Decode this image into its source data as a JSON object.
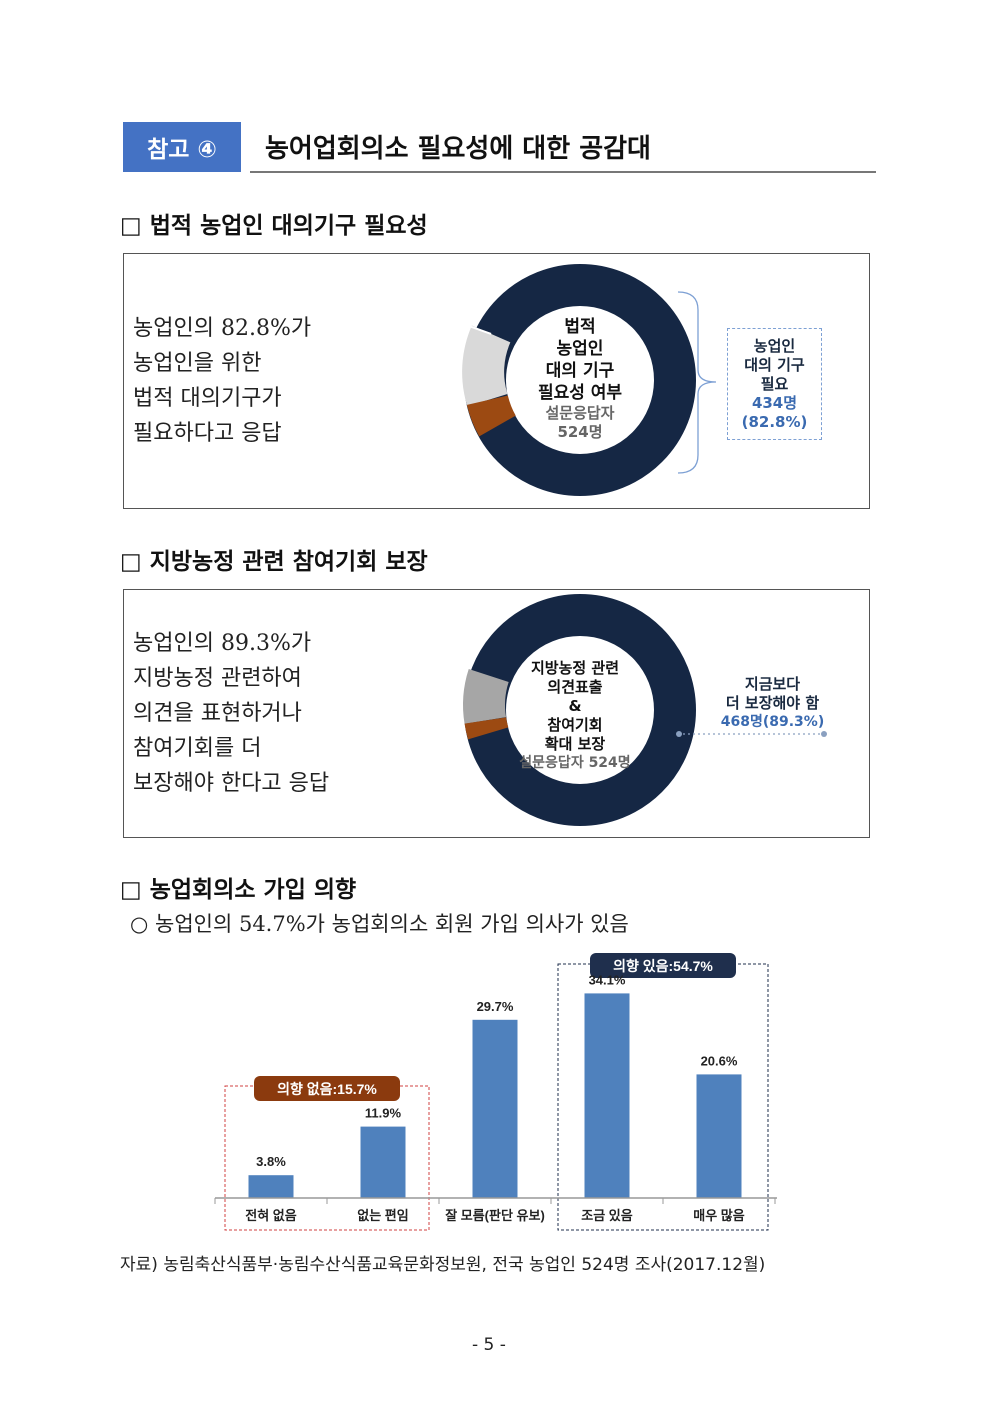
{
  "header": {
    "badge": "참고 ④",
    "title": "농어업회의소 필요성에 대한 공감대"
  },
  "section1": {
    "heading": "□ 법적 농업인 대의기구 필요성",
    "lines": [
      "농업인의 82.8%가",
      "농업인을 위한",
      "법적 대의기구가",
      "필요하다고 응답"
    ],
    "donut_lines": [
      "법적",
      "농업인",
      "대의 기구",
      "필요성 여부"
    ],
    "donut_sub": [
      "설문응답자",
      "524명"
    ],
    "callout_lines": [
      "농업인",
      "대의 기구",
      "필요"
    ],
    "callout_count": "434명",
    "callout_pct": "(82.8%)",
    "share": 0.828
  },
  "section2": {
    "heading": "□ 지방농정 관련 참여기회 보장",
    "lines": [
      "농업인의 89.3%가",
      "지방농정 관련하여",
      "의견을 표현하거나",
      "참여기회를 더",
      "보장해야 한다고 응답"
    ],
    "donut_lines": [
      "지방농정 관련",
      "의견표출",
      "&",
      "참여기회",
      "확대 보장"
    ],
    "donut_sub": "설문응답자 524명",
    "callout_lines": [
      "지금보다",
      "더 보장해야 함"
    ],
    "callout_value": "468명(89.3%)",
    "share": 0.893
  },
  "section3": {
    "heading": "□ 농업회의소 가입 의향",
    "bullet": "○  농업인의 54.7%가 농업회의소 회원 가입 의사가 있음"
  },
  "chart_data": {
    "type": "bar",
    "categories": [
      "전혀 없음",
      "없는 편임",
      "잘 모름(판단 유보)",
      "조금 있음",
      "매우 많음"
    ],
    "values": [
      3.8,
      11.9,
      29.7,
      34.1,
      20.6
    ],
    "value_labels": [
      "3.8%",
      "11.9%",
      "29.7%",
      "34.1%",
      "20.6%"
    ],
    "ylim": [
      0,
      40
    ],
    "bar_color": "#4f81bd",
    "group_no": "의향 없음:15.7%",
    "group_yes": "의향 있음:54.7%",
    "group_no_color": "#8b3a0e",
    "group_yes_color": "#1f2f4d"
  },
  "colors": {
    "navy": "#152744",
    "brown": "#9c4a12",
    "light_grey": "#d9d9d9",
    "mid_grey": "#a6a6a6",
    "accent_blue": "#4472c4"
  },
  "footer": {
    "source": "자료) 농림축산식품부·농림수산식품교육문화정보원, 전국 농업인 524명 조사(2017.12월)",
    "page": "- 5 -"
  }
}
